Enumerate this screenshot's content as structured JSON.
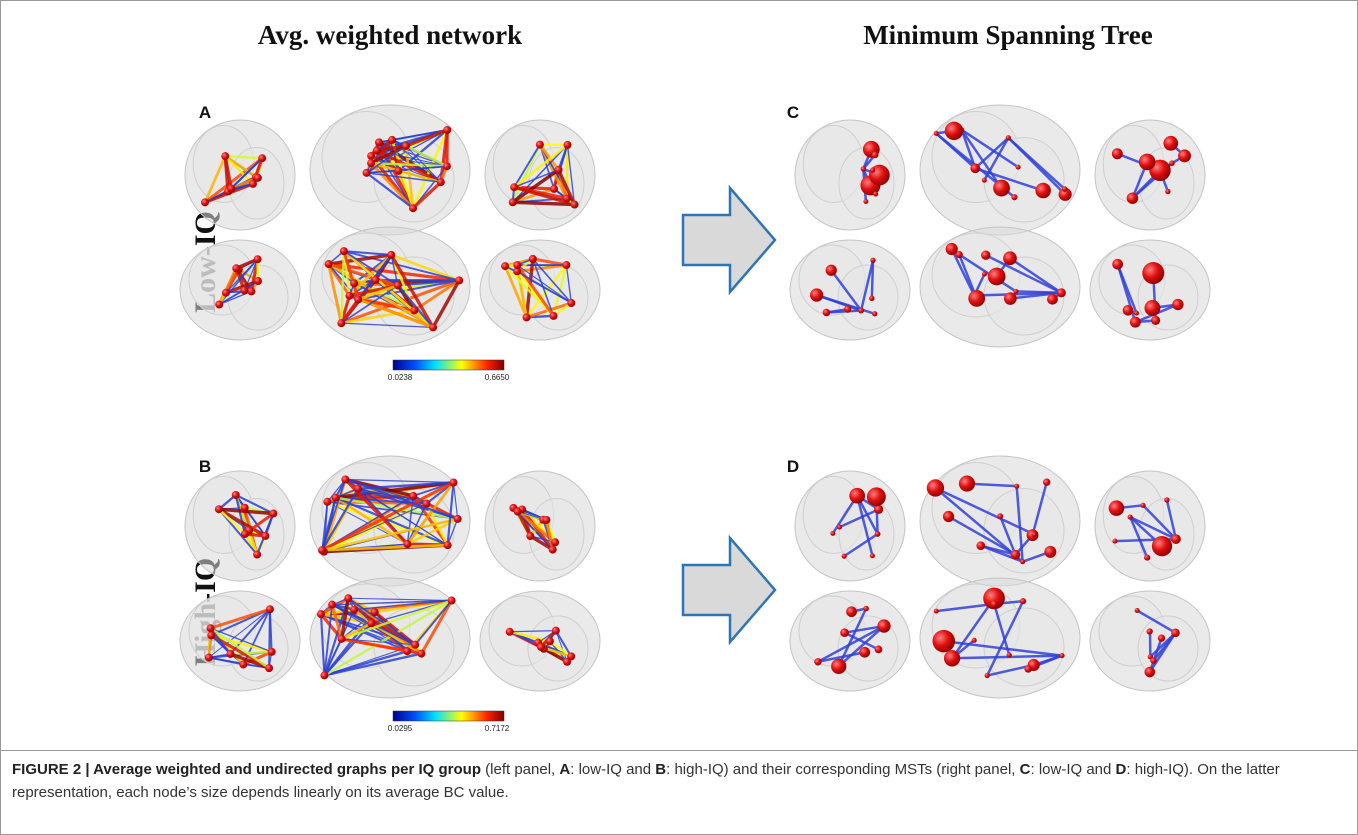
{
  "columns": [
    "Avg. weighted network",
    "Minimum Spanning Tree"
  ],
  "rows": [
    {
      "label": "Low-IQ",
      "panels": [
        "A",
        "C"
      ],
      "colorbar": [
        "0.0238",
        "0.6650"
      ]
    },
    {
      "label": "High-IQ",
      "panels": [
        "B",
        "D"
      ],
      "colorbar": [
        "0.0295",
        "0.7172"
      ]
    }
  ],
  "caption": [
    "FIGURE 2 | Average weighted and undirected graphs per IQ group",
    " (left panel, ",
    "A",
    ": low-IQ and ",
    "B",
    ": high-IQ) and their corresponding MSTs (right panel, ",
    "C",
    ": low-IQ and ",
    "D",
    ": high-IQ). On the latter representation, each node’s size depends linearly on its average BC value."
  ]
}
